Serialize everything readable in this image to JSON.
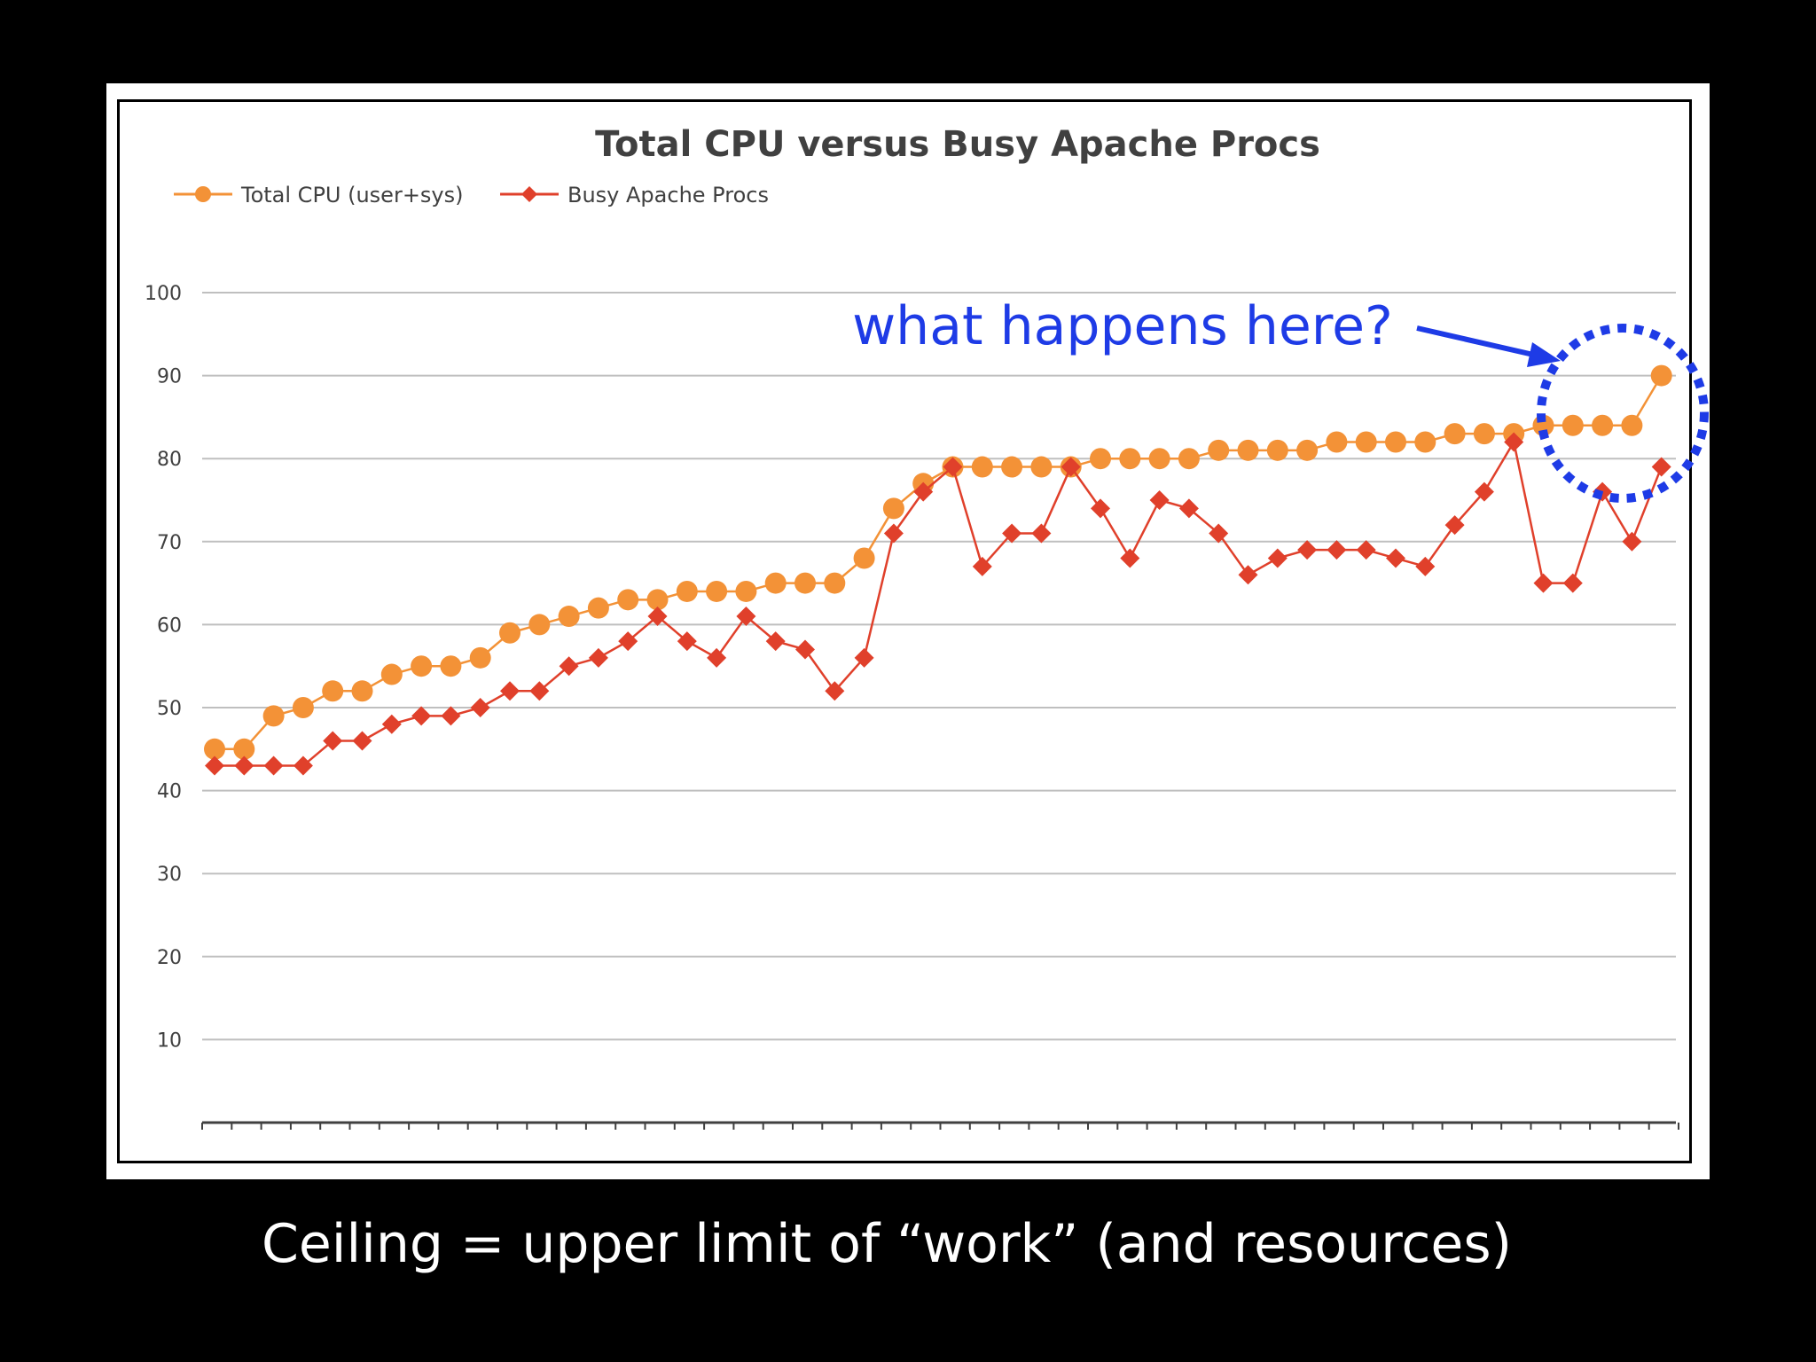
{
  "slide": {
    "caption": "Ceiling = upper limit of “work” (and resources)",
    "annotation": "what happens here?"
  },
  "colors": {
    "background": "#000000",
    "cpu": "#F39237",
    "procs": "#E0402B",
    "annotation": "#1E3BE6",
    "grid": "#BFBFBF"
  },
  "chart_data": {
    "type": "line",
    "title": "Total CPU versus Busy Apache Procs",
    "xlabel": "",
    "ylabel": "",
    "ylim": [
      0,
      100
    ],
    "yticks": [
      10,
      20,
      30,
      40,
      50,
      60,
      70,
      80,
      90,
      100
    ],
    "grid": true,
    "legend_position": "top-left",
    "series": [
      {
        "name": "Total CPU (user+sys)",
        "marker": "circle",
        "values": [
          45,
          45,
          49,
          50,
          52,
          52,
          54,
          55,
          55,
          56,
          59,
          60,
          61,
          62,
          63,
          63,
          64,
          64,
          64,
          65,
          65,
          65,
          68,
          74,
          77,
          79,
          79,
          79,
          79,
          79,
          80,
          80,
          80,
          80,
          81,
          81,
          81,
          81,
          82,
          82,
          82,
          82,
          83,
          83,
          83,
          84,
          84,
          84,
          84,
          90
        ]
      },
      {
        "name": "Busy Apache Procs",
        "marker": "diamond",
        "values": [
          43,
          43,
          43,
          43,
          46,
          46,
          48,
          49,
          49,
          50,
          52,
          52,
          55,
          56,
          58,
          61,
          58,
          56,
          61,
          58,
          57,
          52,
          56,
          71,
          76,
          79,
          67,
          71,
          71,
          79,
          74,
          68,
          75,
          74,
          71,
          66,
          68,
          69,
          69,
          69,
          68,
          67,
          72,
          76,
          82,
          65,
          65,
          76,
          70,
          79
        ]
      }
    ]
  }
}
